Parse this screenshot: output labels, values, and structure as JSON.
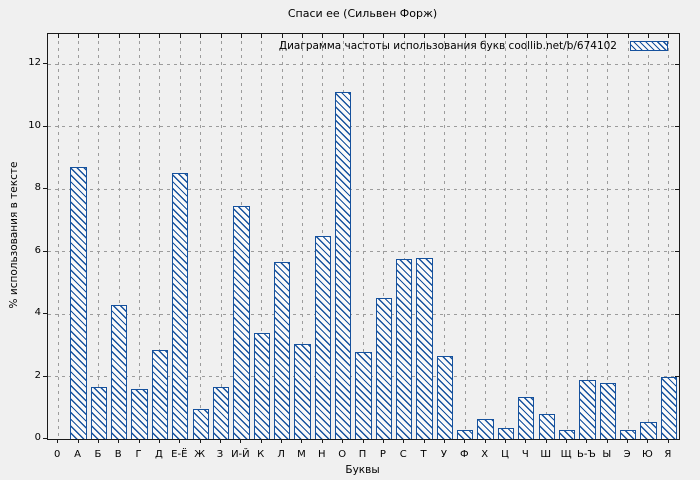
{
  "title": "Спаси ее (Сильвен Форж)",
  "legend": {
    "label": "Диаграмма частоты использования букв coollib.net/b/674102",
    "swatch_icon": "hatched-bar-sample"
  },
  "colors": {
    "bar_stroke": "#15519d",
    "bar_fill": "#fafafa",
    "grid": "#9c9c9c",
    "axis": "#1a1a1a",
    "background": "#f0f0f0"
  },
  "chart_data": {
    "type": "bar",
    "title": "Спаси ее (Сильвен Форж)",
    "xlabel": "Буквы",
    "ylabel": "% использования в тексте",
    "legend_label": "Диаграмма частоты использования букв coollib.net/b/674102",
    "categories": [
      "0",
      "А",
      "Б",
      "В",
      "Г",
      "Д",
      "Е-Ё",
      "Ж",
      "З",
      "И-Й",
      "К",
      "Л",
      "М",
      "Н",
      "О",
      "П",
      "Р",
      "С",
      "Т",
      "У",
      "Ф",
      "Х",
      "Ц",
      "Ч",
      "Ш",
      "Щ",
      "Ь-Ъ",
      "Ы",
      "Э",
      "Ю",
      "Я"
    ],
    "values": [
      0,
      8.7,
      1.65,
      4.3,
      1.6,
      2.85,
      8.5,
      0.95,
      1.65,
      7.45,
      3.4,
      5.65,
      3.05,
      6.5,
      11.1,
      2.8,
      4.5,
      5.75,
      5.8,
      2.65,
      0.3,
      0.65,
      0.35,
      1.35,
      0.8,
      0.3,
      1.9,
      1.8,
      0.3,
      0.55,
      2.0
    ],
    "ylim": [
      0,
      12.96
    ],
    "yticks": [
      0,
      2,
      4,
      6,
      8,
      10,
      12
    ],
    "grid": true,
    "legend_position": "top-right",
    "hatch": "diagonal-down",
    "bar_width_fraction": 0.8
  }
}
